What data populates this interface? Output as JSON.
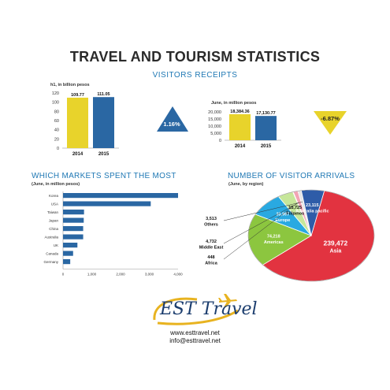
{
  "header": {
    "title": "TRAVEL AND TOURISM STATISTICS",
    "subtitle": "VISITORS RECEIPTS"
  },
  "colors": {
    "yellow": "#e8d32b",
    "blue": "#2a67a3",
    "title_blue": "#1f78b4",
    "asia": "#e23340",
    "americas": "#8cc63f",
    "europe": "#29a9e1",
    "filipinos": "#c6e69a",
    "africa": "#ffffff",
    "middle_east": "#f2a4b4",
    "others": "#e5e5e5",
    "australia_pacific": "#2e5ca8"
  },
  "receipts": {
    "up_triangle_label": "1.16%",
    "down_triangle_label": "-6.87%"
  },
  "footer": {
    "logo_text": "EST Travel",
    "website": "www.esttravel.net",
    "email": "info@esttravel.net"
  },
  "chart_data": [
    {
      "type": "bar",
      "unit_label": "h1, in billion pesos",
      "categories": [
        "2014",
        "2015"
      ],
      "values": [
        109.77,
        111.05
      ],
      "value_labels": [
        "109.77",
        "111.05"
      ],
      "colors": [
        "#e8d32b",
        "#2a67a3"
      ],
      "ylim": [
        0,
        120
      ],
      "yticks": [
        0,
        20,
        40,
        60,
        80,
        100,
        120
      ],
      "grid": false
    },
    {
      "type": "bar",
      "unit_label": "June, in million pesos",
      "categories": [
        "2014",
        "2015"
      ],
      "values": [
        18384.36,
        17130.77
      ],
      "value_labels": [
        "18,384.36",
        "17,130.77"
      ],
      "colors": [
        "#e8d32b",
        "#2a67a3"
      ],
      "ylim": [
        0,
        20000
      ],
      "yticks": [
        0,
        5000,
        10000,
        15000,
        20000
      ],
      "ytick_labels": [
        "0",
        "5,000",
        "10,000",
        "15,000",
        "20,000"
      ],
      "grid": false
    },
    {
      "type": "bar",
      "orientation": "horizontal",
      "title": "WHICH MARKETS SPENT THE MOST",
      "unit_label": "(June, in million pesos)",
      "categories": [
        "Korea",
        "USA",
        "Taiwan",
        "Japan",
        "China",
        "Australia",
        "UK",
        "Canada",
        "Germany"
      ],
      "values": [
        4000,
        3050,
        730,
        720,
        700,
        700,
        500,
        350,
        250
      ],
      "xlim": [
        0,
        4000
      ],
      "xticks": [
        0,
        1000,
        2000,
        3000,
        4000
      ],
      "xtick_labels": [
        "0",
        "1,000",
        "2,000",
        "3,000",
        "4,000"
      ],
      "grid": false
    },
    {
      "type": "pie",
      "title": "NUMBER OF VISITOR ARRIVALS",
      "unit_label": "(June, by region)",
      "slices": [
        {
          "label": "Asia",
          "value": 239472,
          "value_label": "239,472",
          "color": "#e23340"
        },
        {
          "label": "Americas",
          "value": 74218,
          "value_label": "74,218",
          "color": "#8cc63f"
        },
        {
          "label": "Europe",
          "value": 33997,
          "value_label": "33,997",
          "color": "#29a9e1"
        },
        {
          "label": "Filipinos",
          "value": 15725,
          "value_label": "15,725",
          "color": "#c6e69a"
        },
        {
          "label": "Africa",
          "value": 448,
          "value_label": "448",
          "color": "#ffffff"
        },
        {
          "label": "Middle East",
          "value": 4732,
          "value_label": "4,732",
          "color": "#f2a4b4"
        },
        {
          "label": "Others",
          "value": 3513,
          "value_label": "3,513",
          "color": "#e5e5e5"
        },
        {
          "label": "Australia pacific",
          "value": 23115,
          "value_label": "23,115",
          "color": "#2e5ca8"
        }
      ]
    }
  ]
}
